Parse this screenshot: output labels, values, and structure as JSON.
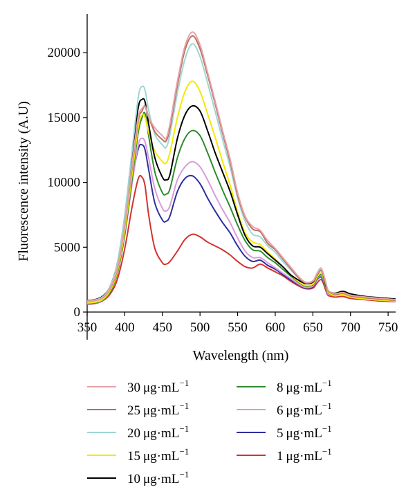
{
  "chart_data": {
    "type": "line",
    "xlabel": "Wavelength (nm)",
    "ylabel": "Fluorescence intensity (A.U)",
    "xlim": [
      350,
      760
    ],
    "ylim": [
      0,
      23000
    ],
    "xticks": [
      "350",
      "400",
      "450",
      "500",
      "550",
      "600",
      "650",
      "700",
      "750"
    ],
    "yticks": [
      "0",
      "5000",
      "10000",
      "15000",
      "20000"
    ],
    "legend_position": "bottom",
    "legend_suffix": "μg·mL",
    "legend_exponent": "−1",
    "series": [
      {
        "name": "30",
        "color": "#e8a0a8",
        "x": [
          350,
          360,
          370,
          380,
          390,
          400,
          410,
          418,
          423,
          427,
          432,
          440,
          450,
          455,
          460,
          470,
          480,
          490,
          500,
          510,
          520,
          530,
          540,
          550,
          560,
          570,
          580,
          590,
          600,
          610,
          620,
          630,
          640,
          650,
          655,
          660,
          663,
          667,
          670,
          675,
          680,
          690,
          700,
          720,
          740,
          760
        ],
        "y": [
          850,
          900,
          1100,
          1800,
          3400,
          6800,
          11500,
          15000,
          15700,
          15800,
          15000,
          14200,
          13600,
          13400,
          14500,
          17800,
          20500,
          21600,
          20600,
          18500,
          16300,
          14000,
          11800,
          9200,
          7400,
          6600,
          6300,
          5500,
          4900,
          4200,
          3500,
          2800,
          2300,
          2400,
          2900,
          3300,
          3100,
          2300,
          1700,
          1500,
          1400,
          1500,
          1300,
          1150,
          1050,
          950
        ]
      },
      {
        "name": "25",
        "color": "#b8705a",
        "x": [
          350,
          360,
          370,
          380,
          390,
          400,
          410,
          418,
          423,
          427,
          432,
          440,
          450,
          455,
          460,
          470,
          480,
          490,
          500,
          510,
          520,
          530,
          540,
          550,
          560,
          570,
          580,
          590,
          600,
          610,
          620,
          630,
          640,
          650,
          655,
          660,
          663,
          667,
          670,
          675,
          680,
          690,
          700,
          720,
          740,
          760
        ],
        "y": [
          830,
          880,
          1080,
          1750,
          3300,
          6700,
          11300,
          14800,
          15500,
          15900,
          15000,
          13900,
          13300,
          13200,
          14200,
          17500,
          20200,
          21300,
          20300,
          18300,
          16100,
          13800,
          11600,
          9000,
          7300,
          6400,
          6200,
          5300,
          4800,
          4100,
          3400,
          2700,
          2250,
          2350,
          2800,
          3200,
          3000,
          2200,
          1650,
          1450,
          1350,
          1450,
          1250,
          1100,
          1000,
          900
        ]
      },
      {
        "name": "20",
        "color": "#9ed6d6",
        "x": [
          350,
          360,
          370,
          380,
          390,
          400,
          410,
          418,
          423,
          427,
          432,
          440,
          450,
          455,
          460,
          470,
          480,
          490,
          500,
          510,
          520,
          530,
          540,
          550,
          560,
          570,
          580,
          590,
          600,
          610,
          620,
          630,
          640,
          650,
          655,
          660,
          663,
          667,
          670,
          675,
          680,
          690,
          700,
          720,
          740,
          760
        ],
        "y": [
          880,
          930,
          1150,
          1900,
          3700,
          7500,
          12600,
          16600,
          17400,
          17100,
          15500,
          13700,
          12900,
          12700,
          13700,
          16900,
          19500,
          20700,
          19700,
          17700,
          15500,
          13300,
          11200,
          8800,
          7000,
          6000,
          5800,
          5100,
          4600,
          3900,
          3300,
          2700,
          2300,
          2400,
          2950,
          3400,
          3150,
          2350,
          1700,
          1500,
          1400,
          1500,
          1300,
          1150,
          1050,
          950
        ]
      },
      {
        "name": "15",
        "color": "#f5e800",
        "x": [
          350,
          360,
          370,
          380,
          390,
          400,
          410,
          418,
          423,
          427,
          432,
          440,
          450,
          455,
          460,
          470,
          480,
          490,
          500,
          510,
          520,
          530,
          540,
          550,
          560,
          570,
          580,
          590,
          600,
          610,
          620,
          630,
          640,
          650,
          655,
          660,
          663,
          667,
          670,
          675,
          680,
          690,
          700,
          720,
          740,
          760
        ],
        "y": [
          700,
          750,
          950,
          1600,
          3100,
          6300,
          10800,
          14300,
          15200,
          15000,
          13800,
          12400,
          11600,
          11500,
          12300,
          15000,
          17000,
          17800,
          17000,
          15300,
          13500,
          11600,
          9800,
          7700,
          6100,
          5400,
          5200,
          4600,
          4100,
          3500,
          2900,
          2400,
          2050,
          2150,
          2650,
          3000,
          2800,
          2050,
          1550,
          1350,
          1250,
          1350,
          1150,
          1000,
          920,
          850
        ]
      },
      {
        "name": "10",
        "color": "#000000",
        "x": [
          350,
          360,
          370,
          380,
          390,
          400,
          410,
          418,
          423,
          427,
          432,
          440,
          450,
          455,
          460,
          470,
          480,
          490,
          500,
          510,
          520,
          530,
          540,
          550,
          560,
          570,
          580,
          590,
          600,
          610,
          620,
          630,
          640,
          650,
          655,
          660,
          663,
          667,
          670,
          675,
          680,
          690,
          700,
          720,
          740,
          760
        ],
        "y": [
          900,
          950,
          1200,
          1900,
          3700,
          7400,
          12400,
          15800,
          16400,
          16200,
          14400,
          11900,
          10400,
          10200,
          10600,
          13400,
          15200,
          15900,
          15500,
          14000,
          12300,
          10800,
          9300,
          7500,
          5900,
          5100,
          5000,
          4500,
          4000,
          3500,
          2900,
          2500,
          2200,
          2300,
          2800,
          3200,
          3000,
          2100,
          1650,
          1500,
          1450,
          1600,
          1400,
          1200,
          1100,
          1000
        ]
      },
      {
        "name": "8",
        "color": "#2e8b2e",
        "x": [
          350,
          360,
          370,
          380,
          390,
          400,
          410,
          418,
          423,
          427,
          432,
          440,
          450,
          455,
          460,
          470,
          480,
          490,
          500,
          510,
          520,
          530,
          540,
          550,
          560,
          570,
          580,
          590,
          600,
          610,
          620,
          630,
          640,
          650,
          655,
          660,
          663,
          667,
          670,
          675,
          680,
          690,
          700,
          720,
          740,
          760
        ],
        "y": [
          650,
          700,
          900,
          1500,
          2950,
          6000,
          10400,
          13900,
          15000,
          15300,
          13500,
          10800,
          9200,
          9100,
          9500,
          11900,
          13400,
          14000,
          13600,
          12300,
          10800,
          9400,
          8100,
          6700,
          5500,
          4800,
          4700,
          4200,
          3800,
          3300,
          2800,
          2350,
          2000,
          2100,
          2550,
          2900,
          2700,
          1950,
          1500,
          1350,
          1300,
          1400,
          1200,
          1050,
          950,
          880
        ]
      },
      {
        "name": "6",
        "color": "#d99ad9",
        "x": [
          350,
          360,
          370,
          380,
          390,
          400,
          410,
          418,
          423,
          427,
          432,
          440,
          450,
          455,
          460,
          470,
          480,
          490,
          500,
          510,
          520,
          530,
          540,
          550,
          560,
          570,
          580,
          590,
          600,
          610,
          620,
          630,
          640,
          650,
          655,
          660,
          663,
          667,
          670,
          675,
          680,
          690,
          700,
          720,
          740,
          760
        ],
        "y": [
          620,
          680,
          880,
          1500,
          2950,
          5900,
          10000,
          12900,
          13400,
          13100,
          11800,
          9500,
          8000,
          7800,
          8200,
          10200,
          11200,
          11600,
          11200,
          10200,
          9000,
          7900,
          6900,
          5700,
          4700,
          4200,
          4200,
          3800,
          3400,
          3000,
          2600,
          2200,
          1900,
          2000,
          2500,
          2800,
          2600,
          1900,
          1400,
          1300,
          1250,
          1350,
          1150,
          1000,
          920,
          850
        ]
      },
      {
        "name": "5",
        "color": "#2e2e9e",
        "x": [
          350,
          360,
          370,
          380,
          390,
          400,
          410,
          418,
          423,
          427,
          432,
          440,
          450,
          455,
          460,
          470,
          480,
          490,
          500,
          510,
          520,
          530,
          540,
          550,
          560,
          570,
          580,
          590,
          600,
          610,
          620,
          630,
          640,
          650,
          655,
          660,
          663,
          667,
          670,
          675,
          680,
          690,
          700,
          720,
          740,
          760
        ],
        "y": [
          680,
          730,
          930,
          1550,
          3000,
          6100,
          10200,
          12600,
          12900,
          12500,
          10900,
          8400,
          7100,
          7000,
          7400,
          9300,
          10300,
          10500,
          9900,
          8800,
          7800,
          6900,
          6100,
          5100,
          4300,
          3900,
          4000,
          3600,
          3300,
          2900,
          2500,
          2150,
          1850,
          1950,
          2450,
          2700,
          2500,
          1850,
          1400,
          1300,
          1250,
          1350,
          1150,
          1000,
          920,
          850
        ]
      },
      {
        "name": "1",
        "color": "#d2322d",
        "x": [
          350,
          360,
          370,
          380,
          390,
          400,
          410,
          418,
          423,
          427,
          432,
          440,
          450,
          455,
          460,
          470,
          480,
          490,
          500,
          510,
          520,
          530,
          540,
          550,
          560,
          570,
          580,
          590,
          600,
          610,
          620,
          630,
          640,
          650,
          655,
          660,
          663,
          667,
          670,
          675,
          680,
          690,
          700,
          720,
          740,
          760
        ],
        "y": [
          600,
          650,
          850,
          1350,
          2500,
          4900,
          8200,
          10300,
          10400,
          9700,
          7400,
          4900,
          3800,
          3700,
          3900,
          4700,
          5600,
          6000,
          5800,
          5400,
          5100,
          4800,
          4400,
          3900,
          3500,
          3400,
          3700,
          3400,
          3100,
          2800,
          2400,
          2050,
          1800,
          1850,
          2200,
          2500,
          2350,
          1700,
          1300,
          1200,
          1150,
          1200,
          1050,
          950,
          850,
          800
        ]
      }
    ]
  }
}
